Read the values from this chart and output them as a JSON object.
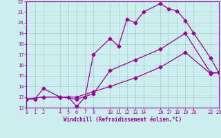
{
  "xlabel": "Windchill (Refroidissement éolien,°C)",
  "background_color": "#cceef0",
  "line_color": "#990099",
  "xlim": [
    0,
    23
  ],
  "ylim": [
    12,
    22
  ],
  "xticks": [
    0,
    1,
    2,
    4,
    5,
    6,
    7,
    8,
    10,
    11,
    12,
    13,
    14,
    16,
    17,
    18,
    19,
    20,
    22,
    23
  ],
  "yticks": [
    12,
    13,
    14,
    15,
    16,
    17,
    18,
    19,
    20,
    21,
    22
  ],
  "line1_x": [
    0,
    1,
    2,
    4,
    5,
    6,
    7,
    8,
    10,
    11,
    12,
    13,
    14,
    16,
    17,
    18,
    19,
    20,
    22,
    23
  ],
  "line1_y": [
    12.8,
    12.8,
    13.8,
    13.0,
    13.0,
    12.1,
    13.0,
    17.0,
    18.5,
    17.8,
    20.3,
    20.0,
    21.0,
    21.8,
    21.3,
    21.1,
    20.2,
    19.0,
    16.7,
    15.3
  ],
  "line2_x": [
    0,
    2,
    4,
    6,
    8,
    10,
    13,
    16,
    19,
    22,
    23
  ],
  "line2_y": [
    12.8,
    13.0,
    13.0,
    12.8,
    13.3,
    15.5,
    16.5,
    17.5,
    19.0,
    15.3,
    15.3
  ],
  "line3_x": [
    0,
    2,
    4,
    6,
    8,
    10,
    13,
    16,
    19,
    22,
    23
  ],
  "line3_y": [
    12.8,
    13.0,
    13.0,
    13.0,
    13.5,
    14.0,
    14.8,
    15.8,
    17.2,
    15.2,
    15.3
  ],
  "grid_color": "#aacccc",
  "marker": "D",
  "markersize": 2.5,
  "linewidth": 0.9,
  "tick_fontsize": 5.0,
  "xlabel_fontsize": 5.5
}
